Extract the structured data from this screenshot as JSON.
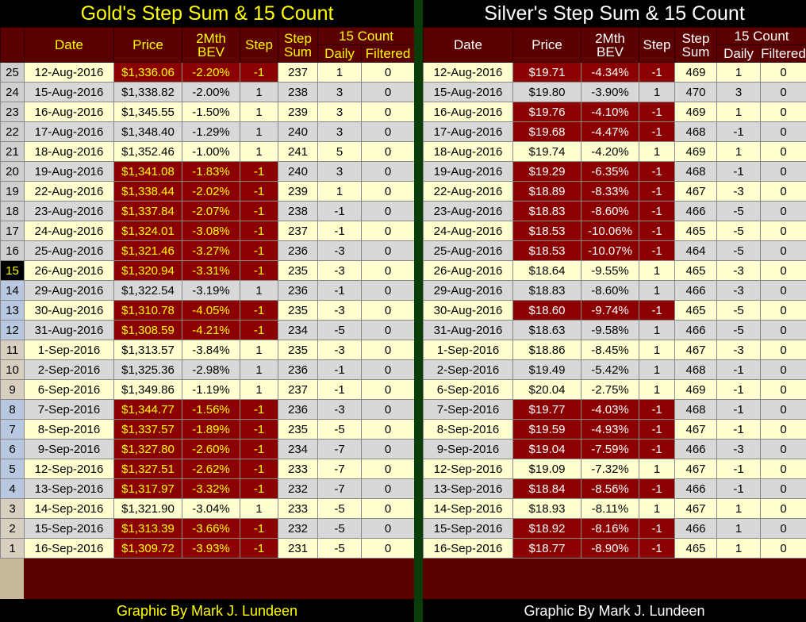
{
  "gold": {
    "title": "Gold's Step Sum & 15 Count",
    "headers": {
      "date": "Date",
      "price": "Price",
      "bev_line1": "2Mth",
      "bev_line2": "BEV",
      "step": "Step",
      "stepsum_line1": "Step",
      "stepsum_line2": "Sum",
      "count": "15 Count",
      "daily": "Daily",
      "filtered": "Filtered"
    },
    "rows": [
      {
        "n": "25",
        "date": "12-Aug-2016",
        "price": "$1,336.06",
        "bev": "-2.20%",
        "step": "-1",
        "sum": "237",
        "daily": "1",
        "filtered": "0"
      },
      {
        "n": "24",
        "date": "15-Aug-2016",
        "price": "$1,338.82",
        "bev": "-2.00%",
        "step": "1",
        "sum": "238",
        "daily": "3",
        "filtered": "0"
      },
      {
        "n": "23",
        "date": "16-Aug-2016",
        "price": "$1,345.55",
        "bev": "-1.50%",
        "step": "1",
        "sum": "239",
        "daily": "3",
        "filtered": "0"
      },
      {
        "n": "22",
        "date": "17-Aug-2016",
        "price": "$1,348.40",
        "bev": "-1.29%",
        "step": "1",
        "sum": "240",
        "daily": "3",
        "filtered": "0"
      },
      {
        "n": "21",
        "date": "18-Aug-2016",
        "price": "$1,352.46",
        "bev": "-1.00%",
        "step": "1",
        "sum": "241",
        "daily": "5",
        "filtered": "0"
      },
      {
        "n": "20",
        "date": "19-Aug-2016",
        "price": "$1,341.08",
        "bev": "-1.83%",
        "step": "-1",
        "sum": "240",
        "daily": "3",
        "filtered": "0"
      },
      {
        "n": "19",
        "date": "22-Aug-2016",
        "price": "$1,338.44",
        "bev": "-2.02%",
        "step": "-1",
        "sum": "239",
        "daily": "1",
        "filtered": "0"
      },
      {
        "n": "18",
        "date": "23-Aug-2016",
        "price": "$1,337.84",
        "bev": "-2.07%",
        "step": "-1",
        "sum": "238",
        "daily": "-1",
        "filtered": "0"
      },
      {
        "n": "17",
        "date": "24-Aug-2016",
        "price": "$1,324.01",
        "bev": "-3.08%",
        "step": "-1",
        "sum": "237",
        "daily": "-1",
        "filtered": "0"
      },
      {
        "n": "16",
        "date": "25-Aug-2016",
        "price": "$1,321.46",
        "bev": "-3.27%",
        "step": "-1",
        "sum": "236",
        "daily": "-3",
        "filtered": "0"
      },
      {
        "n": "15",
        "date": "26-Aug-2016",
        "price": "$1,320.94",
        "bev": "-3.31%",
        "step": "-1",
        "sum": "235",
        "daily": "-3",
        "filtered": "0"
      },
      {
        "n": "14",
        "date": "29-Aug-2016",
        "price": "$1,322.54",
        "bev": "-3.19%",
        "step": "1",
        "sum": "236",
        "daily": "-1",
        "filtered": "0"
      },
      {
        "n": "13",
        "date": "30-Aug-2016",
        "price": "$1,310.78",
        "bev": "-4.05%",
        "step": "-1",
        "sum": "235",
        "daily": "-3",
        "filtered": "0"
      },
      {
        "n": "12",
        "date": "31-Aug-2016",
        "price": "$1,308.59",
        "bev": "-4.21%",
        "step": "-1",
        "sum": "234",
        "daily": "-5",
        "filtered": "0"
      },
      {
        "n": "11",
        "date": "1-Sep-2016",
        "price": "$1,313.57",
        "bev": "-3.84%",
        "step": "1",
        "sum": "235",
        "daily": "-3",
        "filtered": "0"
      },
      {
        "n": "10",
        "date": "2-Sep-2016",
        "price": "$1,325.36",
        "bev": "-2.98%",
        "step": "1",
        "sum": "236",
        "daily": "-1",
        "filtered": "0"
      },
      {
        "n": "9",
        "date": "6-Sep-2016",
        "price": "$1,349.86",
        "bev": "-1.19%",
        "step": "1",
        "sum": "237",
        "daily": "-1",
        "filtered": "0"
      },
      {
        "n": "8",
        "date": "7-Sep-2016",
        "price": "$1,344.77",
        "bev": "-1.56%",
        "step": "-1",
        "sum": "236",
        "daily": "-3",
        "filtered": "0"
      },
      {
        "n": "7",
        "date": "8-Sep-2016",
        "price": "$1,337.57",
        "bev": "-1.89%",
        "step": "-1",
        "sum": "235",
        "daily": "-5",
        "filtered": "0"
      },
      {
        "n": "6",
        "date": "9-Sep-2016",
        "price": "$1,327.80",
        "bev": "-2.60%",
        "step": "-1",
        "sum": "234",
        "daily": "-7",
        "filtered": "0"
      },
      {
        "n": "5",
        "date": "12-Sep-2016",
        "price": "$1,327.51",
        "bev": "-2.62%",
        "step": "-1",
        "sum": "233",
        "daily": "-7",
        "filtered": "0"
      },
      {
        "n": "4",
        "date": "13-Sep-2016",
        "price": "$1,317.97",
        "bev": "-3.32%",
        "step": "-1",
        "sum": "232",
        "daily": "-7",
        "filtered": "0"
      },
      {
        "n": "3",
        "date": "14-Sep-2016",
        "price": "$1,321.90",
        "bev": "-3.04%",
        "step": "1",
        "sum": "233",
        "daily": "-5",
        "filtered": "0"
      },
      {
        "n": "2",
        "date": "15-Sep-2016",
        "price": "$1,313.39",
        "bev": "-3.66%",
        "step": "-1",
        "sum": "232",
        "daily": "-5",
        "filtered": "0"
      },
      {
        "n": "1",
        "date": "16-Sep-2016",
        "price": "$1,309.72",
        "bev": "-3.93%",
        "step": "-1",
        "sum": "231",
        "daily": "-5",
        "filtered": "0"
      }
    ],
    "footer": "Graphic By Mark J. Lundeen"
  },
  "silver": {
    "title": "Silver's Step Sum & 15 Count",
    "headers": {
      "date": "Date",
      "price": "Price",
      "bev_line1": "2Mth",
      "bev_line2": "BEV",
      "step": "Step",
      "stepsum_line1": "Step",
      "stepsum_line2": "Sum",
      "count": "15 Count",
      "daily": "Daily",
      "filtered": "Filtered"
    },
    "rows": [
      {
        "date": "12-Aug-2016",
        "price": "$19.71",
        "bev": "-4.34%",
        "step": "-1",
        "sum": "469",
        "daily": "1",
        "filtered": "0"
      },
      {
        "date": "15-Aug-2016",
        "price": "$19.80",
        "bev": "-3.90%",
        "step": "1",
        "sum": "470",
        "daily": "3",
        "filtered": "0"
      },
      {
        "date": "16-Aug-2016",
        "price": "$19.76",
        "bev": "-4.10%",
        "step": "-1",
        "sum": "469",
        "daily": "1",
        "filtered": "0"
      },
      {
        "date": "17-Aug-2016",
        "price": "$19.68",
        "bev": "-4.47%",
        "step": "-1",
        "sum": "468",
        "daily": "-1",
        "filtered": "0"
      },
      {
        "date": "18-Aug-2016",
        "price": "$19.74",
        "bev": "-4.20%",
        "step": "1",
        "sum": "469",
        "daily": "1",
        "filtered": "0"
      },
      {
        "date": "19-Aug-2016",
        "price": "$19.29",
        "bev": "-6.35%",
        "step": "-1",
        "sum": "468",
        "daily": "-1",
        "filtered": "0"
      },
      {
        "date": "22-Aug-2016",
        "price": "$18.89",
        "bev": "-8.33%",
        "step": "-1",
        "sum": "467",
        "daily": "-3",
        "filtered": "0"
      },
      {
        "date": "23-Aug-2016",
        "price": "$18.83",
        "bev": "-8.60%",
        "step": "-1",
        "sum": "466",
        "daily": "-5",
        "filtered": "0"
      },
      {
        "date": "24-Aug-2016",
        "price": "$18.53",
        "bev": "-10.06%",
        "step": "-1",
        "sum": "465",
        "daily": "-5",
        "filtered": "0"
      },
      {
        "date": "25-Aug-2016",
        "price": "$18.53",
        "bev": "-10.07%",
        "step": "-1",
        "sum": "464",
        "daily": "-5",
        "filtered": "0"
      },
      {
        "date": "26-Aug-2016",
        "price": "$18.64",
        "bev": "-9.55%",
        "step": "1",
        "sum": "465",
        "daily": "-3",
        "filtered": "0"
      },
      {
        "date": "29-Aug-2016",
        "price": "$18.83",
        "bev": "-8.60%",
        "step": "1",
        "sum": "466",
        "daily": "-3",
        "filtered": "0"
      },
      {
        "date": "30-Aug-2016",
        "price": "$18.60",
        "bev": "-9.74%",
        "step": "-1",
        "sum": "465",
        "daily": "-5",
        "filtered": "0"
      },
      {
        "date": "31-Aug-2016",
        "price": "$18.63",
        "bev": "-9.58%",
        "step": "1",
        "sum": "466",
        "daily": "-5",
        "filtered": "0"
      },
      {
        "date": "1-Sep-2016",
        "price": "$18.86",
        "bev": "-8.45%",
        "step": "1",
        "sum": "467",
        "daily": "-3",
        "filtered": "0"
      },
      {
        "date": "2-Sep-2016",
        "price": "$19.49",
        "bev": "-5.42%",
        "step": "1",
        "sum": "468",
        "daily": "-1",
        "filtered": "0"
      },
      {
        "date": "6-Sep-2016",
        "price": "$20.04",
        "bev": "-2.75%",
        "step": "1",
        "sum": "469",
        "daily": "-1",
        "filtered": "0"
      },
      {
        "date": "7-Sep-2016",
        "price": "$19.77",
        "bev": "-4.03%",
        "step": "-1",
        "sum": "468",
        "daily": "-1",
        "filtered": "0"
      },
      {
        "date": "8-Sep-2016",
        "price": "$19.59",
        "bev": "-4.93%",
        "step": "-1",
        "sum": "467",
        "daily": "-1",
        "filtered": "0"
      },
      {
        "date": "9-Sep-2016",
        "price": "$19.04",
        "bev": "-7.59%",
        "step": "-1",
        "sum": "466",
        "daily": "-3",
        "filtered": "0"
      },
      {
        "date": "12-Sep-2016",
        "price": "$19.09",
        "bev": "-7.32%",
        "step": "1",
        "sum": "467",
        "daily": "-1",
        "filtered": "0"
      },
      {
        "date": "13-Sep-2016",
        "price": "$18.84",
        "bev": "-8.56%",
        "step": "-1",
        "sum": "466",
        "daily": "-1",
        "filtered": "0"
      },
      {
        "date": "14-Sep-2016",
        "price": "$18.93",
        "bev": "-8.11%",
        "step": "1",
        "sum": "467",
        "daily": "1",
        "filtered": "0"
      },
      {
        "date": "15-Sep-2016",
        "price": "$18.92",
        "bev": "-8.16%",
        "step": "-1",
        "sum": "466",
        "daily": "1",
        "filtered": "0"
      },
      {
        "date": "16-Sep-2016",
        "price": "$18.77",
        "bev": "-8.90%",
        "step": "-1",
        "sum": "465",
        "daily": "1",
        "filtered": "0"
      }
    ],
    "footer": "Graphic By Mark J. Lundeen"
  },
  "colors": {
    "negative_fill": "#8b0000",
    "header_fill": "#5a0000",
    "odd_row": "#ffffd0",
    "even_row": "#d8d8d8",
    "gold_text": "#ffff00",
    "silver_text": "#ffffff",
    "divider": "#0b3d0b"
  }
}
